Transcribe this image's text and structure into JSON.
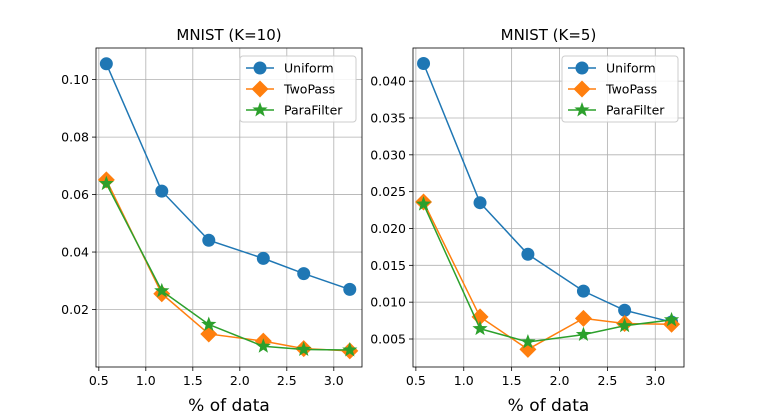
{
  "chart_data": [
    {
      "type": "line",
      "title": "MNIST (K=10)",
      "xlabel": "% of data",
      "ylabel": "",
      "xlim": [
        0.47,
        3.3
      ],
      "ylim": [
        0.0,
        0.111
      ],
      "xticks": [
        0.5,
        1.0,
        1.5,
        2.0,
        2.5,
        3.0
      ],
      "xtick_labels": [
        "0.5",
        "1.0",
        "1.5",
        "2.0",
        "2.5",
        "3.0"
      ],
      "yticks": [
        0.02,
        0.04,
        0.06,
        0.08,
        0.1
      ],
      "ytick_labels": [
        "0.02",
        "0.04",
        "0.06",
        "0.08",
        "0.10"
      ],
      "grid": true,
      "legend_position": "top-right",
      "x": [
        0.58,
        1.17,
        1.67,
        2.25,
        2.68,
        3.17
      ],
      "series": [
        {
          "name": "Uniform",
          "color": "#1f77b4",
          "marker": "circle",
          "values": [
            0.1055,
            0.0612,
            0.0441,
            0.0378,
            0.0325,
            0.027
          ]
        },
        {
          "name": "TwoPass",
          "color": "#ff7f0e",
          "marker": "diamond",
          "values": [
            0.0651,
            0.0255,
            0.0115,
            0.009,
            0.0064,
            0.0056
          ]
        },
        {
          "name": "ParaFilter",
          "color": "#2ca02c",
          "marker": "star",
          "values": [
            0.0638,
            0.0265,
            0.0148,
            0.0072,
            0.0061,
            0.0059
          ]
        }
      ]
    },
    {
      "type": "line",
      "title": "MNIST (K=5)",
      "xlabel": "% of data",
      "ylabel": "",
      "xlim": [
        0.47,
        3.3
      ],
      "ylim": [
        0.0012,
        0.0445
      ],
      "xticks": [
        0.5,
        1.0,
        1.5,
        2.0,
        2.5,
        3.0
      ],
      "xtick_labels": [
        "0.5",
        "1.0",
        "1.5",
        "2.0",
        "2.5",
        "3.0"
      ],
      "yticks": [
        0.005,
        0.01,
        0.015,
        0.02,
        0.025,
        0.03,
        0.035,
        0.04
      ],
      "ytick_labels": [
        "0.005",
        "0.010",
        "0.015",
        "0.020",
        "0.025",
        "0.030",
        "0.035",
        "0.040"
      ],
      "grid": true,
      "legend_position": "top-right",
      "x": [
        0.58,
        1.17,
        1.67,
        2.25,
        2.68,
        3.17
      ],
      "series": [
        {
          "name": "Uniform",
          "color": "#1f77b4",
          "marker": "circle",
          "values": [
            0.0424,
            0.0235,
            0.0165,
            0.0115,
            0.0089,
            0.0073
          ]
        },
        {
          "name": "TwoPass",
          "color": "#ff7f0e",
          "marker": "diamond",
          "values": [
            0.0236,
            0.008,
            0.0036,
            0.0078,
            0.0071,
            0.007
          ]
        },
        {
          "name": "ParaFilter",
          "color": "#2ca02c",
          "marker": "star",
          "values": [
            0.0233,
            0.0064,
            0.0046,
            0.0056,
            0.0068,
            0.0076
          ]
        }
      ]
    }
  ]
}
